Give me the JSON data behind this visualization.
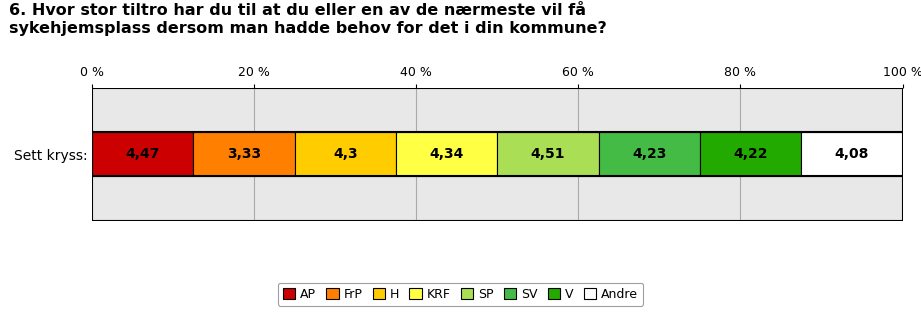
{
  "title": "6. Hvor stor tiltro har du til at du eller en av de nærmeste vil få\nsykehjemsplass dersom man hadde behov for det i din kommune?",
  "ylabel": "Sett kryss:",
  "parties": [
    "AP",
    "FrP",
    "H",
    "KRF",
    "SP",
    "SV",
    "V",
    "Andre"
  ],
  "values": [
    "4,47",
    "3,33",
    "4,3",
    "4,34",
    "4,51",
    "4,23",
    "4,22",
    "4,08"
  ],
  "colors": [
    "#cc0000",
    "#ff8000",
    "#ffcc00",
    "#ffff44",
    "#aade55",
    "#44bb44",
    "#22aa00",
    "#ffffff"
  ],
  "bar_widths": [
    12.5,
    12.5,
    12.5,
    12.5,
    12.5,
    12.5,
    12.5,
    12.5
  ],
  "xlim": [
    0,
    100
  ],
  "xticks": [
    0,
    20,
    40,
    60,
    80,
    100
  ],
  "xtick_labels": [
    "0 %",
    "20 %",
    "40 %",
    "60 %",
    "80 %",
    "100 %"
  ],
  "table_bg": "#e8e8e8",
  "bar_edgecolor": "#000000",
  "grid_color": "#aaaaaa",
  "text_color": "#000000",
  "title_fontsize": 11.5,
  "tick_fontsize": 9,
  "value_fontsize": 10,
  "ylabel_fontsize": 10,
  "legend_fontsize": 9
}
